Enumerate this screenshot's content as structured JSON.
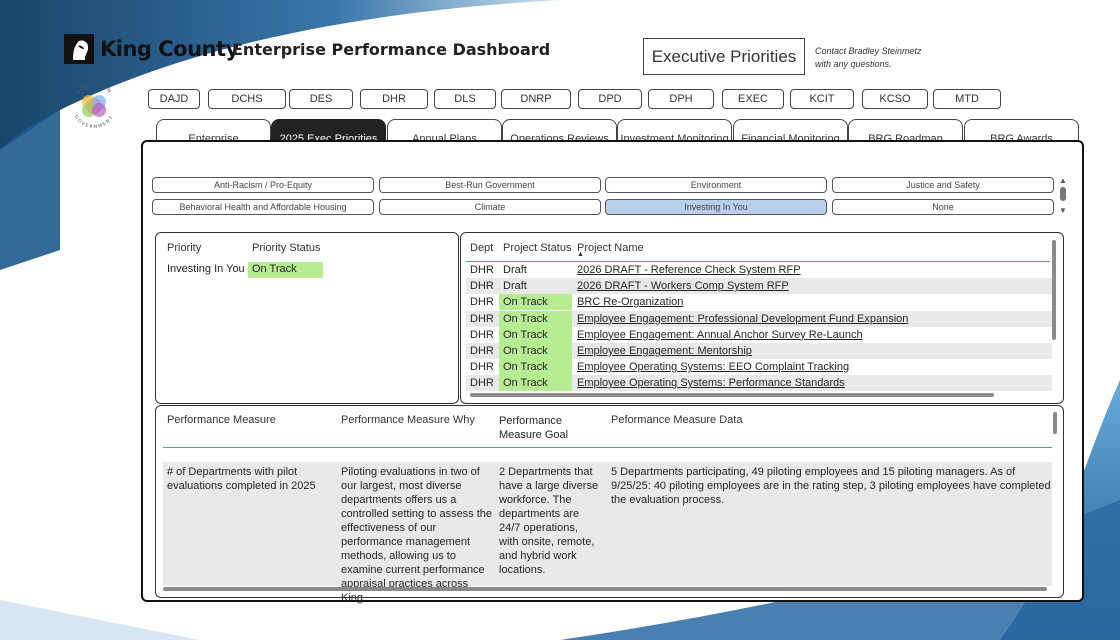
{
  "header": {
    "logo_text": "King County",
    "title": "Enterprise Performance Dashboard",
    "section_box": "Executive Priorities",
    "contact_line1": "Contact Bradley Steinmetz",
    "contact_line2": "with any questions.",
    "badge_top": "BEST-RUN",
    "badge_bottom": "GOVERNMENT"
  },
  "departments": [
    "DAJD",
    "DCHS",
    "DES",
    "DHR",
    "DLS",
    "DNRP",
    "DPD",
    "DPH",
    "EXEC",
    "KCIT",
    "KCSO",
    "MTD"
  ],
  "tabs": [
    {
      "label": "Enterprise",
      "active": false
    },
    {
      "label": "2025 Exec Priorities",
      "active": true
    },
    {
      "label": "Annual Plans",
      "active": false
    },
    {
      "label": "Operations Reviews",
      "active": false
    },
    {
      "label": "Investment Monitoring",
      "active": false
    },
    {
      "label": "Financial Monitoring",
      "active": false
    },
    {
      "label": "BRG Roadmap",
      "active": false
    },
    {
      "label": "BRG Awards",
      "active": false
    }
  ],
  "priority_filters": [
    {
      "label": "Anti-Racism / Pro-Equity",
      "selected": false
    },
    {
      "label": "Best-Run Government",
      "selected": false
    },
    {
      "label": "Environment",
      "selected": false
    },
    {
      "label": "Justice and Safety",
      "selected": false
    },
    {
      "label": "Behavioral Health and Affordable Housing",
      "selected": false
    },
    {
      "label": "Climate",
      "selected": false
    },
    {
      "label": "Investing In You",
      "selected": true
    },
    {
      "label": "None",
      "selected": false
    }
  ],
  "priority_table": {
    "headers": [
      "Priority",
      "Priority Status"
    ],
    "rows": [
      {
        "priority": "Investing In You",
        "status": "On Track"
      }
    ]
  },
  "project_table": {
    "headers": [
      "Dept",
      "Project Status",
      "Project Name"
    ],
    "sort_indicator": "▲",
    "rows": [
      {
        "dept": "DHR",
        "status": "Draft",
        "name": "2026 DRAFT - Reference Check System RFP"
      },
      {
        "dept": "DHR",
        "status": "Draft",
        "name": "2026 DRAFT - Workers Comp System RFP"
      },
      {
        "dept": "DHR",
        "status": "On Track",
        "name": "BRC Re-Organization"
      },
      {
        "dept": "DHR",
        "status": "On Track",
        "name": "Employee Engagement: Professional Development Fund Expansion"
      },
      {
        "dept": "DHR",
        "status": "On Track",
        "name": "Employee Engagement: Annual Anchor Survey Re-Launch"
      },
      {
        "dept": "DHR",
        "status": "On Track",
        "name": "Employee Engagement: Mentorship"
      },
      {
        "dept": "DHR",
        "status": "On Track",
        "name": "Employee Operating Systems: EEO Complaint Tracking"
      },
      {
        "dept": "DHR",
        "status": "On Track",
        "name": "Employee Operating Systems: Performance Standards"
      }
    ]
  },
  "measure_table": {
    "headers": [
      "Performance Measure",
      "Performance Measure Why",
      "Performance Measure Goal",
      "Peformance Measure Data"
    ],
    "rows": [
      {
        "measure": "# of Departments with pilot evaluations completed in 2025",
        "why": "Piloting evaluations in two of our largest, most diverse departments offers us a controlled setting to assess the effectiveness of our performance management methods, allowing us to examine current performance appraisal practices across King",
        "goal": "2 Departments that have a large diverse workforce. The departments are 24/7 operations, with onsite, remote, and hybrid work locations.",
        "data": "5 Departments participating, 49 piloting employees and 15 piloting managers. As of 9/25/25: 40 piloting employees are in the rating step, 3 piloting employees have completed the evaluation process."
      }
    ]
  },
  "colors": {
    "on_track": "#b6ec92",
    "selected_filter": "#b8d0ee",
    "active_tab": "#222222",
    "accent_line": "#4a9ad6"
  }
}
